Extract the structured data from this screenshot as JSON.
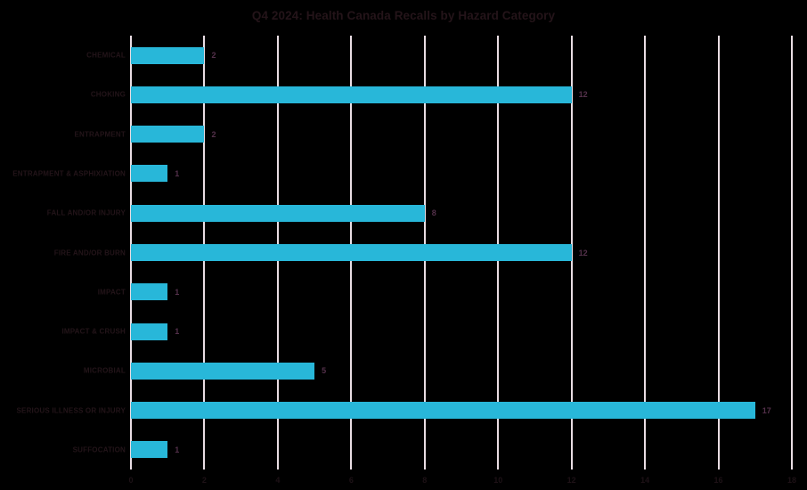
{
  "title": "Q4 2024: Health Canada Recalls by Hazard Category",
  "chart_data": {
    "type": "bar",
    "orientation": "horizontal",
    "title": "Q4 2024: Health Canada Recalls by Hazard Category",
    "categories": [
      "CHEMICAL",
      "CHOKING",
      "ENTRAPMENT",
      "ENTRAPMENT & ASPHIXIATION",
      "FALL AND/OR INJURY",
      "FIRE AND/OR BURN",
      "IMPACT",
      "IMPACT & CRUSH",
      "MICROBIAL",
      "SERIOUS ILLNESS OR INJURY",
      "SUFFOCATION"
    ],
    "values": [
      2,
      12,
      2,
      1,
      8,
      12,
      1,
      1,
      5,
      17,
      1
    ],
    "xlabel": "",
    "ylabel": "",
    "xlim": [
      0,
      18
    ],
    "x_ticks": [
      0,
      2,
      4,
      6,
      8,
      10,
      12,
      14,
      16,
      18
    ],
    "grid": "vertical",
    "data_labels": true,
    "legend": "none",
    "colors": {
      "background": "#000000",
      "bar": "#28b7d9",
      "gridline": "#e9dde3",
      "title_text": "#241419",
      "category_text": "#231419",
      "value_text": "#53304a",
      "tick_text": "#1d1116"
    }
  }
}
